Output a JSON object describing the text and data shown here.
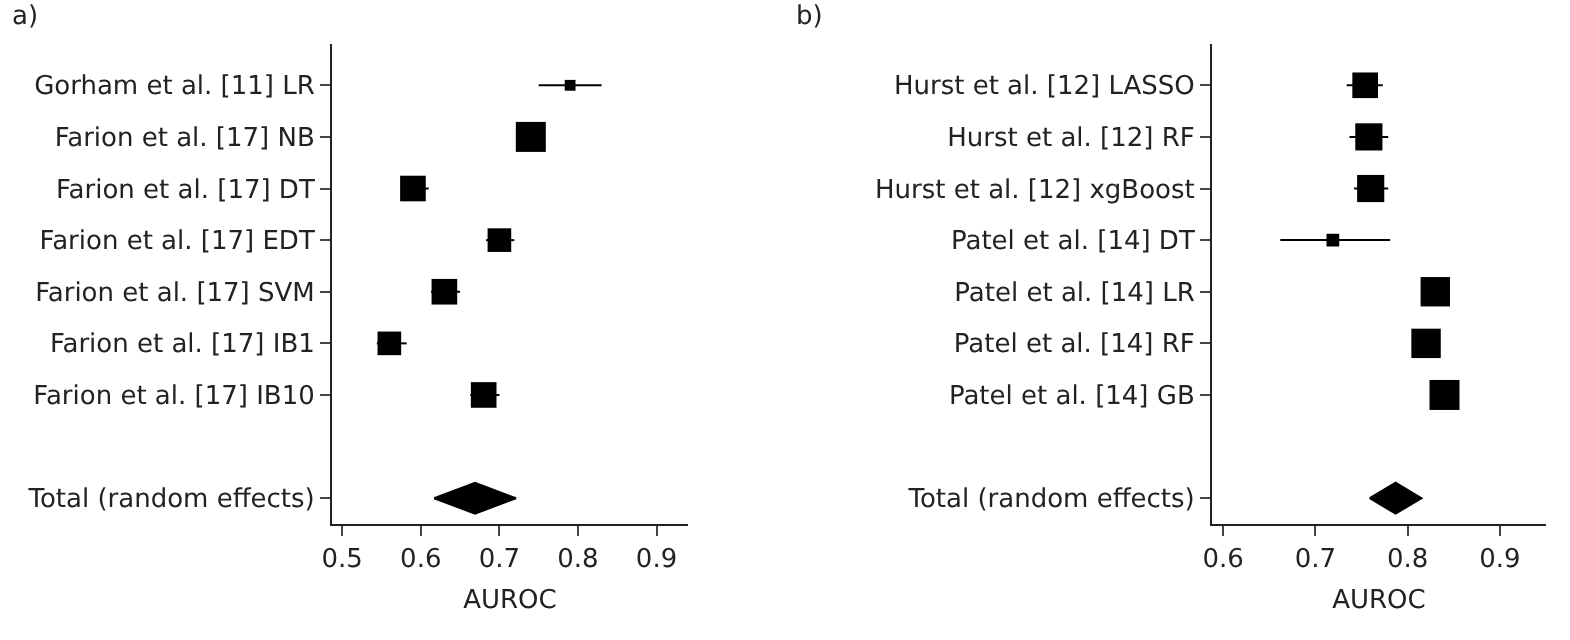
{
  "chart_data": [
    {
      "type": "bubble",
      "orientation": "horizontal",
      "xlabel": "AUROC",
      "annotations": [
        "a)"
      ],
      "categories": [
        "Gorham et al. [11] LR",
        "Farion et al. [17] NB",
        "Farion et al. [17] DT",
        "Farion et al. [17] EDT",
        "Farion et al. [17] SVM",
        "Farion et al. [17] IB1",
        "Farion et al. [17] IB10",
        null,
        "Total (random effects)"
      ],
      "xlim": [
        0.487,
        0.94
      ],
      "xticks": [
        0.5,
        0.6,
        0.7,
        0.8,
        0.9
      ],
      "series": [
        {
          "type": "bubble",
          "marker": "square",
          "color": "#000000",
          "values": [
            0.79,
            0.74,
            0.59,
            0.7,
            0.63,
            0.56,
            0.68,
            null,
            null
          ],
          "sizes": [
            0.13,
            1,
            0.73,
            0.62,
            0.73,
            0.62,
            0.73,
            null,
            null
          ],
          "errors": [
            [
              0.75,
              0.83
            ],
            null,
            [
              0.575,
              0.61
            ],
            [
              0.683,
              0.719
            ],
            [
              0.613,
              0.65
            ],
            [
              0.544,
              0.582
            ],
            [
              0.663,
              0.7
            ],
            null,
            null
          ]
        },
        {
          "type": "scatter",
          "marker": "diamond",
          "color": "#000000",
          "values": [
            null,
            null,
            null,
            null,
            null,
            null,
            null,
            null,
            0.669
          ],
          "errors": [
            null,
            null,
            null,
            null,
            null,
            null,
            null,
            null,
            [
              0.617,
              0.721
            ]
          ]
        }
      ]
    },
    {
      "type": "bubble",
      "orientation": "horizontal",
      "xlabel": "AUROC",
      "annotations": [
        "b)"
      ],
      "categories": [
        "Hurst et al. [12] LASSO",
        "Hurst et al. [12] RF",
        "Hurst et al. [12] xgBoost",
        "Patel et al. [14] DT",
        "Patel et al. [14] LR",
        "Patel et al. [14] RF",
        "Patel et al. [14] GB",
        null,
        "Total (random effects)"
      ],
      "xlim": [
        0.588,
        0.95
      ],
      "xticks": [
        0.6,
        0.7,
        0.8,
        0.9
      ],
      "series": [
        {
          "type": "bubble",
          "marker": "square",
          "color": "#000000",
          "values": [
            0.754,
            0.758,
            0.76,
            0.719,
            0.83,
            0.82,
            0.84,
            null,
            null
          ],
          "sizes": [
            0.73,
            0.82,
            0.82,
            0.18,
            0.96,
            0.96,
            1,
            null,
            null
          ],
          "errors": [
            [
              0.734,
              0.773
            ],
            [
              0.737,
              0.779
            ],
            [
              0.742,
              0.779
            ],
            [
              0.662,
              0.781
            ],
            null,
            null,
            null,
            null,
            null
          ]
        },
        {
          "type": "scatter",
          "marker": "diamond",
          "color": "#000000",
          "values": [
            null,
            null,
            null,
            null,
            null,
            null,
            null,
            null,
            0.787
          ],
          "errors": [
            null,
            null,
            null,
            null,
            null,
            null,
            null,
            null,
            [
              0.759,
              0.815
            ]
          ]
        }
      ]
    }
  ]
}
